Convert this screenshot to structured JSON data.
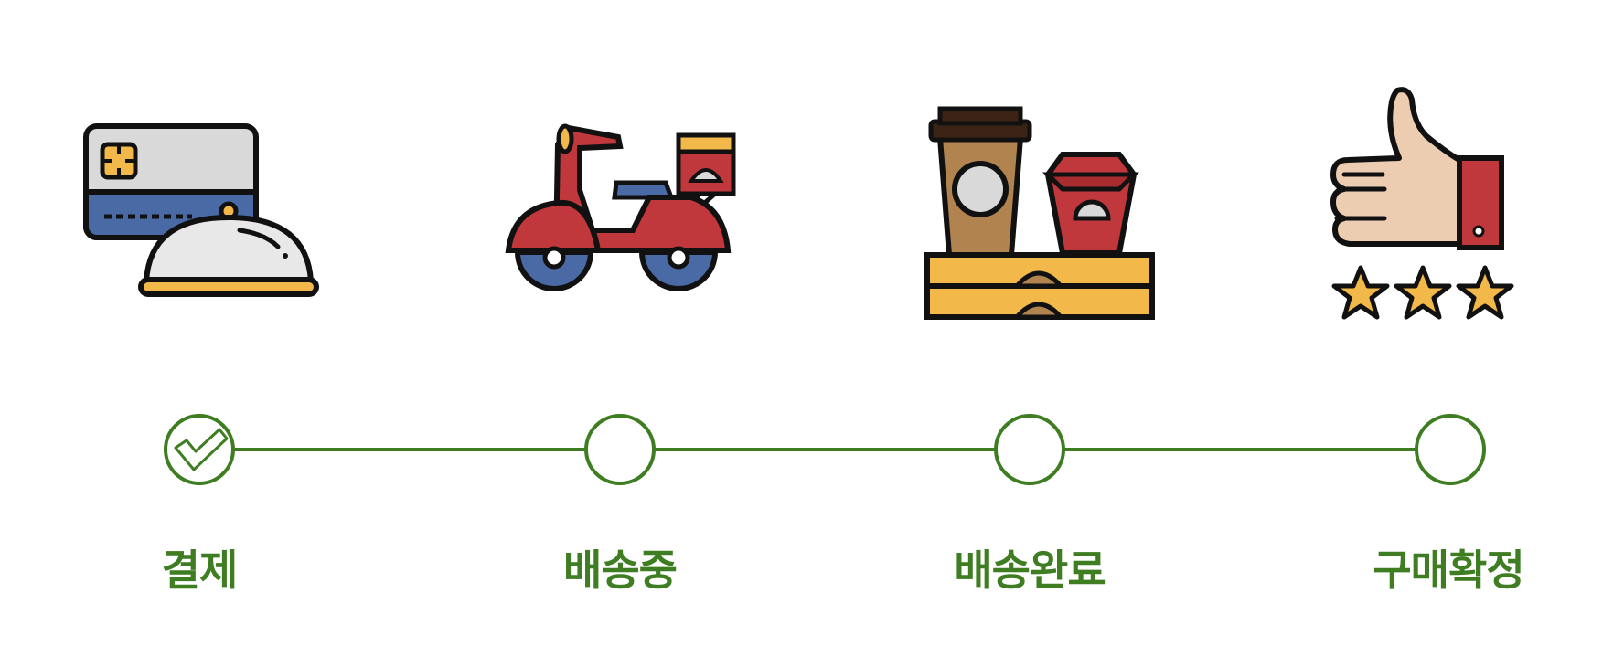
{
  "colors": {
    "accent": "#3e7d21",
    "outline": "#111111",
    "red": "#c0383b",
    "blue": "#4a6aa6",
    "yellow": "#f2b84a",
    "gray": "#d9d9d9",
    "brown": "#b0834f",
    "skin": "#eccdb2"
  },
  "steps": [
    {
      "label": "결제",
      "icon": "card-and-cloche-icon",
      "completed": true
    },
    {
      "label": "배송중",
      "icon": "delivery-scooter-icon",
      "completed": false
    },
    {
      "label": "배송완료",
      "icon": "coffee-and-food-box-icon",
      "completed": false
    },
    {
      "label": "구매확정",
      "icon": "thumbs-up-stars-icon",
      "completed": false
    }
  ]
}
